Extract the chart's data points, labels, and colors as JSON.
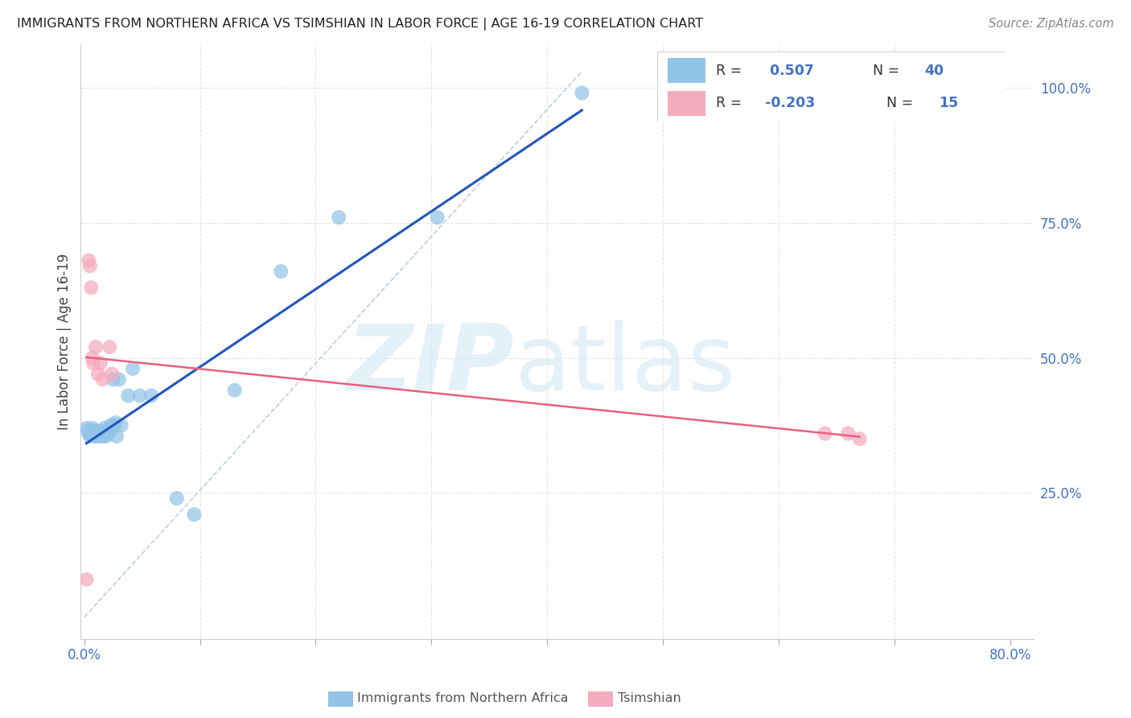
{
  "title": "IMMIGRANTS FROM NORTHERN AFRICA VS TSIMSHIAN IN LABOR FORCE | AGE 16-19 CORRELATION CHART",
  "source": "Source: ZipAtlas.com",
  "ylabel": "In Labor Force | Age 16-19",
  "xlim": [
    -0.003,
    0.82
  ],
  "ylim": [
    -0.02,
    1.08
  ],
  "blue_color": "#92C4E8",
  "pink_color": "#F5ABBE",
  "blue_line_color": "#2255BB",
  "pink_line_color": "#E86080",
  "ref_line_color": "#B8C8E0",
  "grid_color": "#E5E5E5",
  "blue_scatter_x": [
    0.002,
    0.003,
    0.004,
    0.005,
    0.006,
    0.007,
    0.008,
    0.009,
    0.01,
    0.011,
    0.012,
    0.013,
    0.014,
    0.015,
    0.016,
    0.017,
    0.018,
    0.019,
    0.02,
    0.021,
    0.022,
    0.023,
    0.024,
    0.025,
    0.026,
    0.027,
    0.028,
    0.03,
    0.032,
    0.038,
    0.042,
    0.048,
    0.058,
    0.08,
    0.095,
    0.13,
    0.17,
    0.22,
    0.305,
    0.43
  ],
  "blue_scatter_y": [
    0.37,
    0.365,
    0.36,
    0.355,
    0.36,
    0.37,
    0.365,
    0.355,
    0.355,
    0.36,
    0.36,
    0.365,
    0.355,
    0.36,
    0.355,
    0.36,
    0.37,
    0.355,
    0.36,
    0.36,
    0.37,
    0.375,
    0.37,
    0.46,
    0.375,
    0.38,
    0.355,
    0.46,
    0.375,
    0.43,
    0.48,
    0.43,
    0.43,
    0.24,
    0.21,
    0.44,
    0.66,
    0.76,
    0.76,
    0.99
  ],
  "pink_scatter_x": [
    0.002,
    0.004,
    0.005,
    0.006,
    0.007,
    0.008,
    0.01,
    0.012,
    0.014,
    0.016,
    0.022,
    0.024,
    0.64,
    0.66,
    0.67
  ],
  "pink_scatter_y": [
    0.09,
    0.68,
    0.67,
    0.63,
    0.5,
    0.49,
    0.52,
    0.47,
    0.49,
    0.46,
    0.52,
    0.47,
    0.36,
    0.36,
    0.35
  ],
  "legend_R1": "0.507",
  "legend_N1": "40",
  "legend_R2": "-0.203",
  "legend_N2": "15"
}
